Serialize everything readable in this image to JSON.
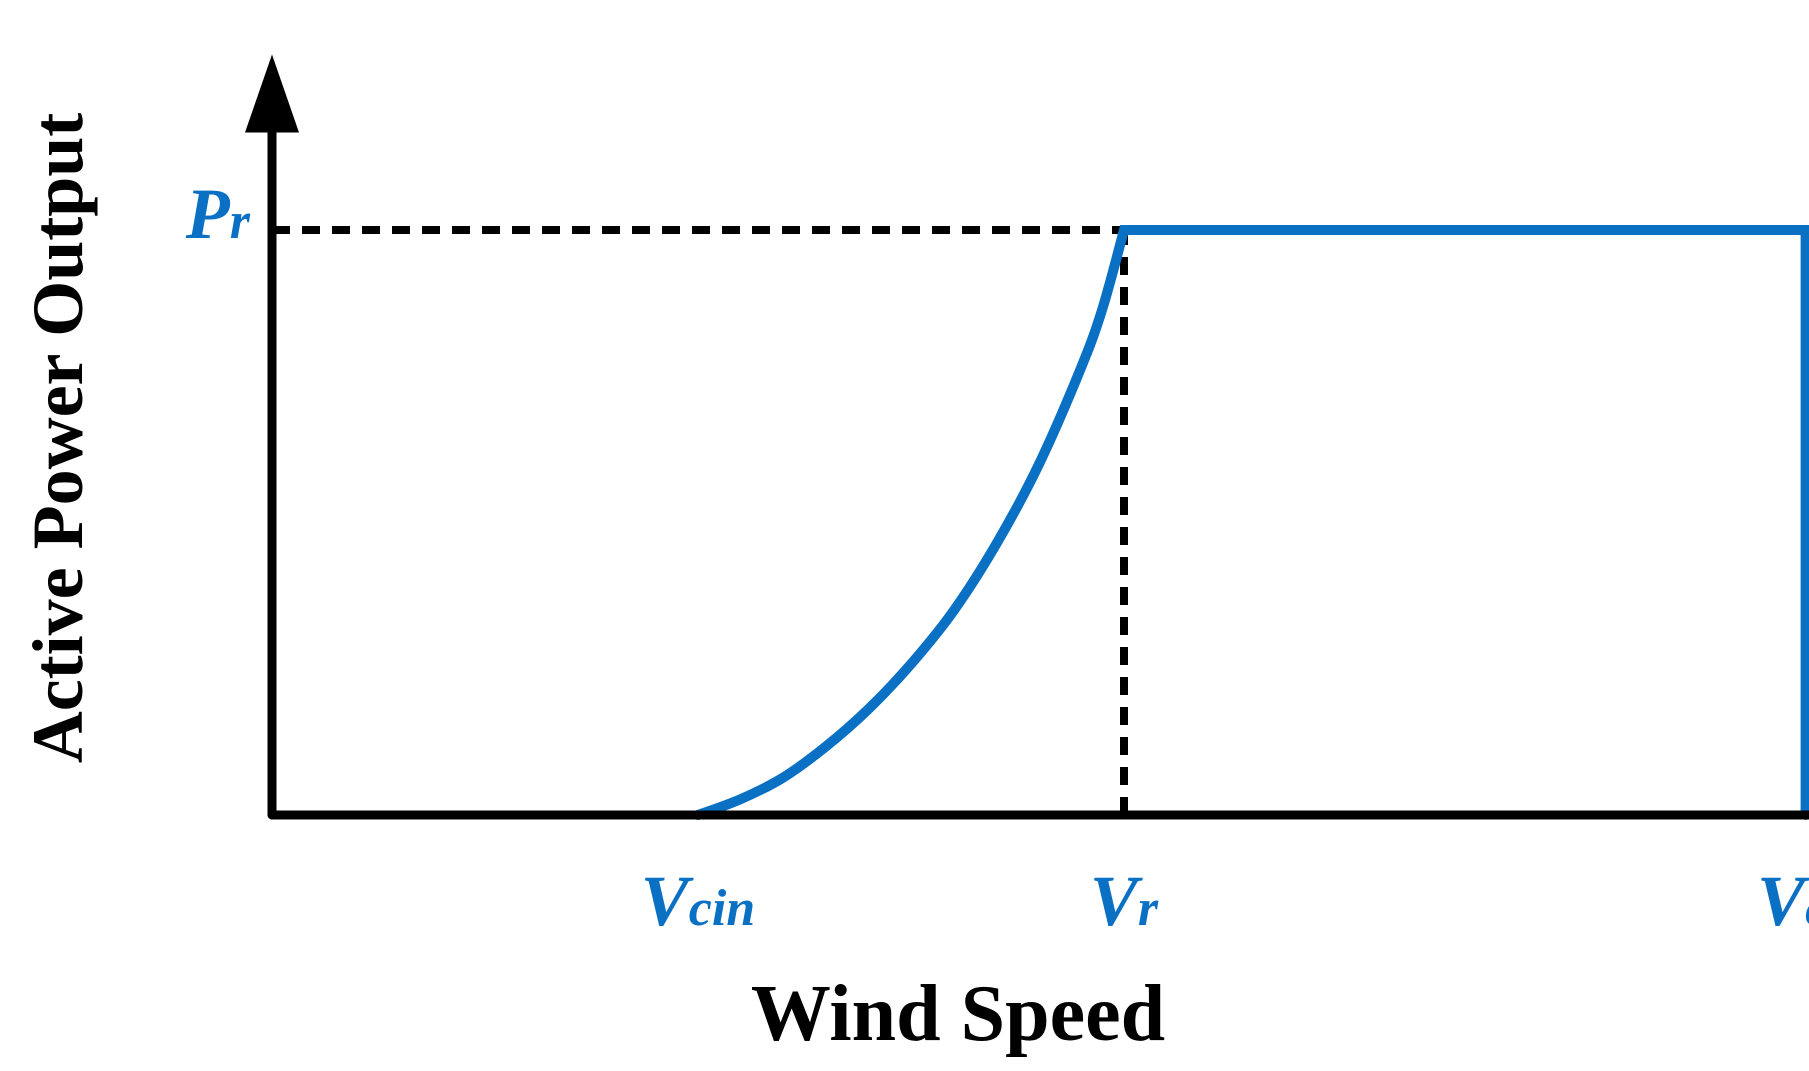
{
  "chart_data": {
    "type": "line",
    "title": "",
    "xlabel": "Wind Speed",
    "ylabel": "Active Power Output",
    "ticks": {
      "x": [
        {
          "main": "V",
          "sub": "cin",
          "value": 1
        },
        {
          "main": "V",
          "sub": "r",
          "value": 2
        },
        {
          "main": "V",
          "sub": "co",
          "value": 3.6
        }
      ],
      "y": [
        {
          "main": "P",
          "sub": "r",
          "value": 1
        }
      ]
    },
    "xlim": [
      0,
      4.3
    ],
    "ylim": [
      0,
      1.3
    ],
    "series": [
      {
        "points": [
          [
            1.0,
            0.0
          ],
          [
            1.1,
            0.027
          ],
          [
            1.2,
            0.064
          ],
          [
            1.3,
            0.117
          ],
          [
            1.4,
            0.181
          ],
          [
            1.5,
            0.258
          ],
          [
            1.6,
            0.349
          ],
          [
            1.7,
            0.463
          ],
          [
            1.8,
            0.599
          ],
          [
            1.9,
            0.766
          ],
          [
            1.95,
            0.867
          ],
          [
            2.0,
            1.0
          ],
          [
            3.6,
            1.0
          ],
          [
            3.6,
            0.0
          ]
        ]
      }
    ],
    "reference_lines": [
      {
        "from": [
          0,
          1
        ],
        "to": [
          2,
          1
        ],
        "style": "dashed"
      },
      {
        "from": [
          2,
          0
        ],
        "to": [
          2,
          1
        ],
        "style": "dashed"
      }
    ],
    "grid": false,
    "legend": "none",
    "colors": {
      "curve": "#0a70c4",
      "axis": "#000000",
      "ticks": "#0a70c4"
    }
  }
}
